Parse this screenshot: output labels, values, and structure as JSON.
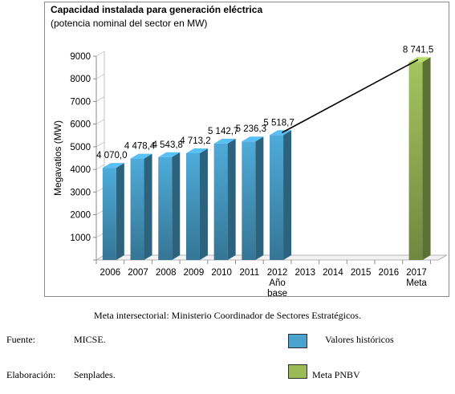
{
  "chart_data": {
    "type": "bar",
    "title": "Capacidad instalada para generación eléctrica",
    "subtitle": "(potencia nominal del sector en MW)",
    "ylabel": "Megavatios (MW)",
    "xlabel": "",
    "ylim": [
      0,
      9000
    ],
    "yticks": [
      "0",
      "1000",
      "2000",
      "3000",
      "4000",
      "5000",
      "6000",
      "7000",
      "8000",
      "9000"
    ],
    "categories": [
      "2006",
      "2007",
      "2008",
      "2009",
      "2010",
      "2011",
      "2012",
      "2013",
      "2014",
      "2015",
      "2016",
      "2017"
    ],
    "category_sublabels": {
      "2012": [
        "Año",
        "base"
      ],
      "2017": [
        "Meta"
      ]
    },
    "series": [
      {
        "name": "Valores históricos",
        "color": "#4aa3cf",
        "values": [
          4070.0,
          4478.4,
          4543.8,
          4713.2,
          5142.7,
          5236.3,
          5518.7,
          null,
          null,
          null,
          null,
          null
        ],
        "labels": [
          "4 070,0",
          "4 478,4",
          "4 543,8",
          "4 713,2",
          "5 142,7",
          "5 236,3",
          "5 518,7",
          "",
          "",
          "",
          "",
          ""
        ]
      },
      {
        "name": "Meta PNBV",
        "color": "#9bbb59",
        "values": [
          null,
          null,
          null,
          null,
          null,
          null,
          null,
          null,
          null,
          null,
          null,
          8741.5
        ],
        "labels": [
          "",
          "",
          "",
          "",
          "",
          "",
          "",
          "",
          "",
          "",
          "",
          "8 741,5"
        ]
      }
    ],
    "trend_line": {
      "from": "2012",
      "to": "2017"
    },
    "grid": false,
    "legend": "bottom-right"
  },
  "note": "Meta intersectorial: Ministerio Coordinador de Sectores Estratégicos.",
  "footer": {
    "fuente_label": "Fuente:",
    "fuente_value": "MICSE.",
    "elaboracion_label": "Elaboración:",
    "elaboracion_value": "Senplades."
  },
  "legend": {
    "historic_label": "Valores históricos",
    "historic_color": "#4aa3cf",
    "meta_label": "Meta PNBV",
    "meta_color": "#9bbb59"
  }
}
